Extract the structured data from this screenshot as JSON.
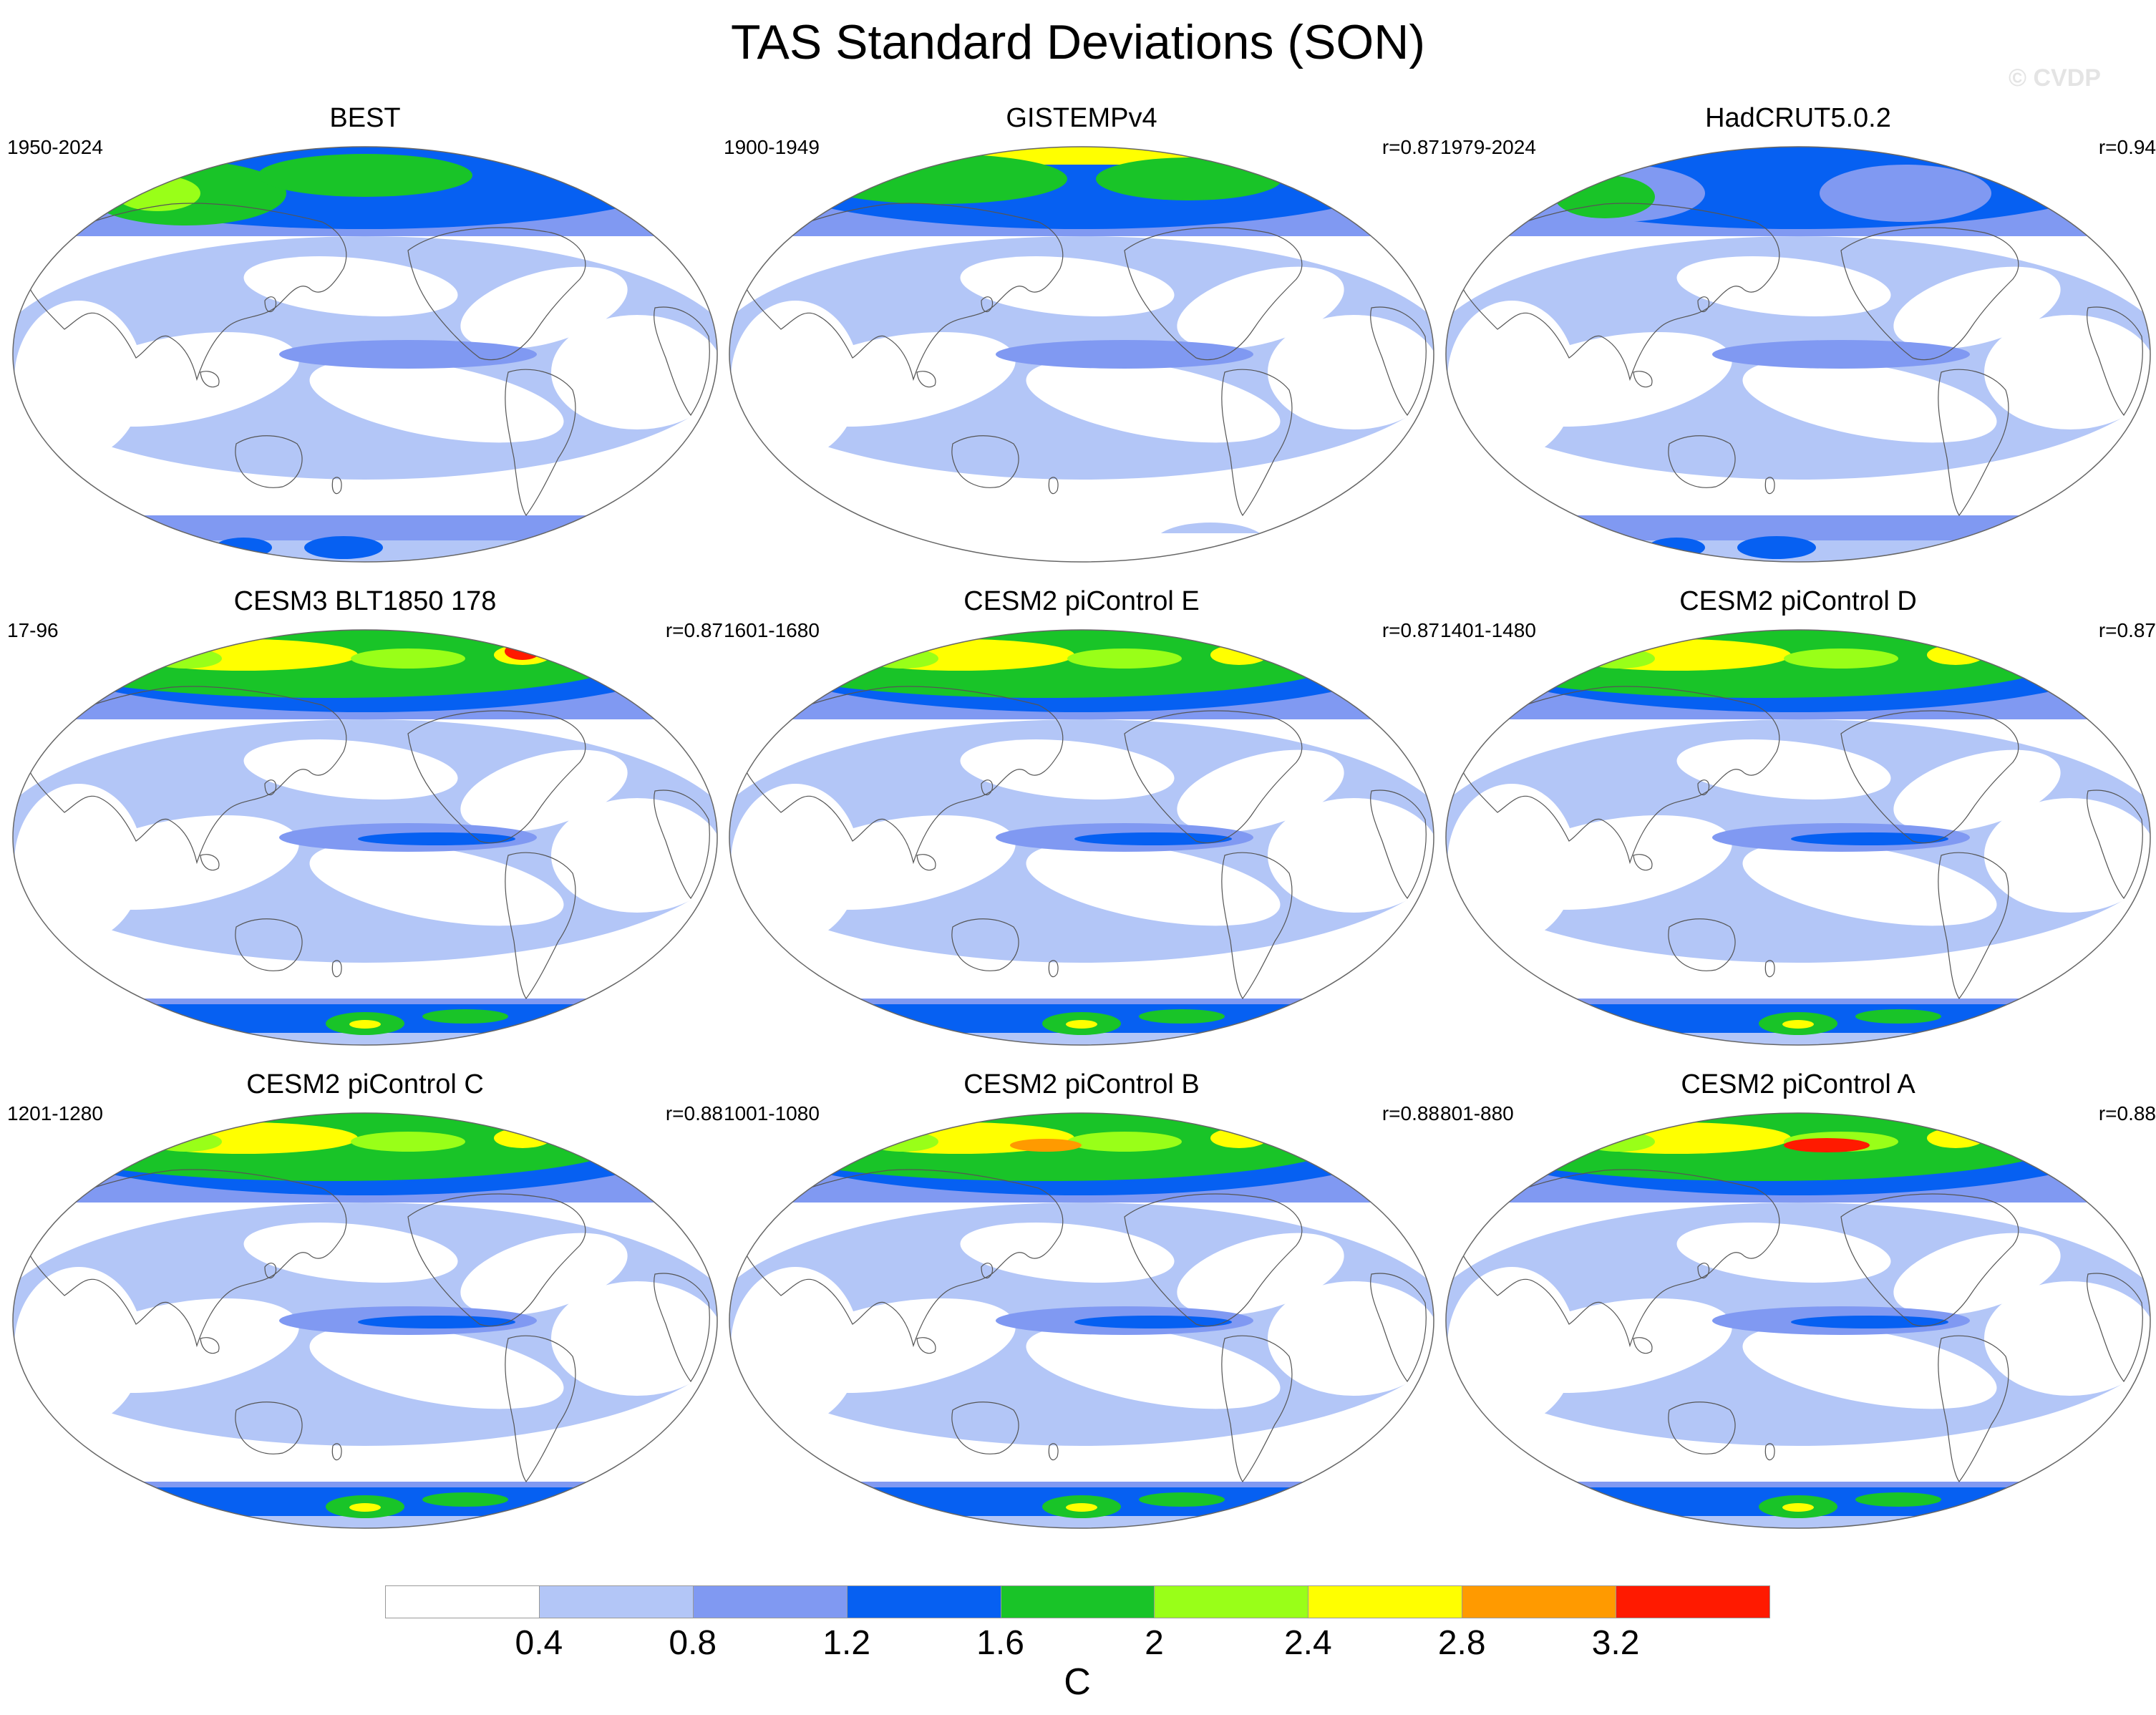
{
  "title": "TAS Standard Deviations (SON)",
  "watermark": "© CVDP",
  "colors": {
    "c0": "#ffffff",
    "c1": "#b3c6f7",
    "c2": "#8099f2",
    "c3": "#0660f2",
    "c4": "#19c428",
    "c5": "#99ff18",
    "c6": "#ffff00",
    "c7": "#ff9a00",
    "c8": "#ff1a00",
    "coast": "#555555",
    "frame": "#666666"
  },
  "panels": [
    {
      "title": "BEST",
      "period": "1950-2024",
      "r": ""
    },
    {
      "title": "GISTEMPv4",
      "period": "1900-1949",
      "r": "r=0.87"
    },
    {
      "title": "HadCRUT5.0.2",
      "period": "1979-2024",
      "r": "r=0.94"
    },
    {
      "title": "CESM3 BLT1850 178",
      "period": "17-96",
      "r": "r=0.87"
    },
    {
      "title": "CESM2 piControl E",
      "period": "1601-1680",
      "r": "r=0.87"
    },
    {
      "title": "CESM2 piControl D",
      "period": "1401-1480",
      "r": "r=0.87"
    },
    {
      "title": "CESM2 piControl C",
      "period": "1201-1280",
      "r": "r=0.88"
    },
    {
      "title": "CESM2 piControl B",
      "period": "1001-1080",
      "r": "r=0.88"
    },
    {
      "title": "CESM2 piControl A",
      "period": "801-880",
      "r": "r=0.88"
    }
  ],
  "colorbar": {
    "labels": [
      "0.4",
      "0.8",
      "1.2",
      "1.6",
      "2",
      "2.4",
      "2.8",
      "3.2"
    ],
    "unit": "C",
    "color_keys": [
      "c0",
      "c1",
      "c2",
      "c3",
      "c4",
      "c5",
      "c6",
      "c7",
      "c8"
    ]
  }
}
